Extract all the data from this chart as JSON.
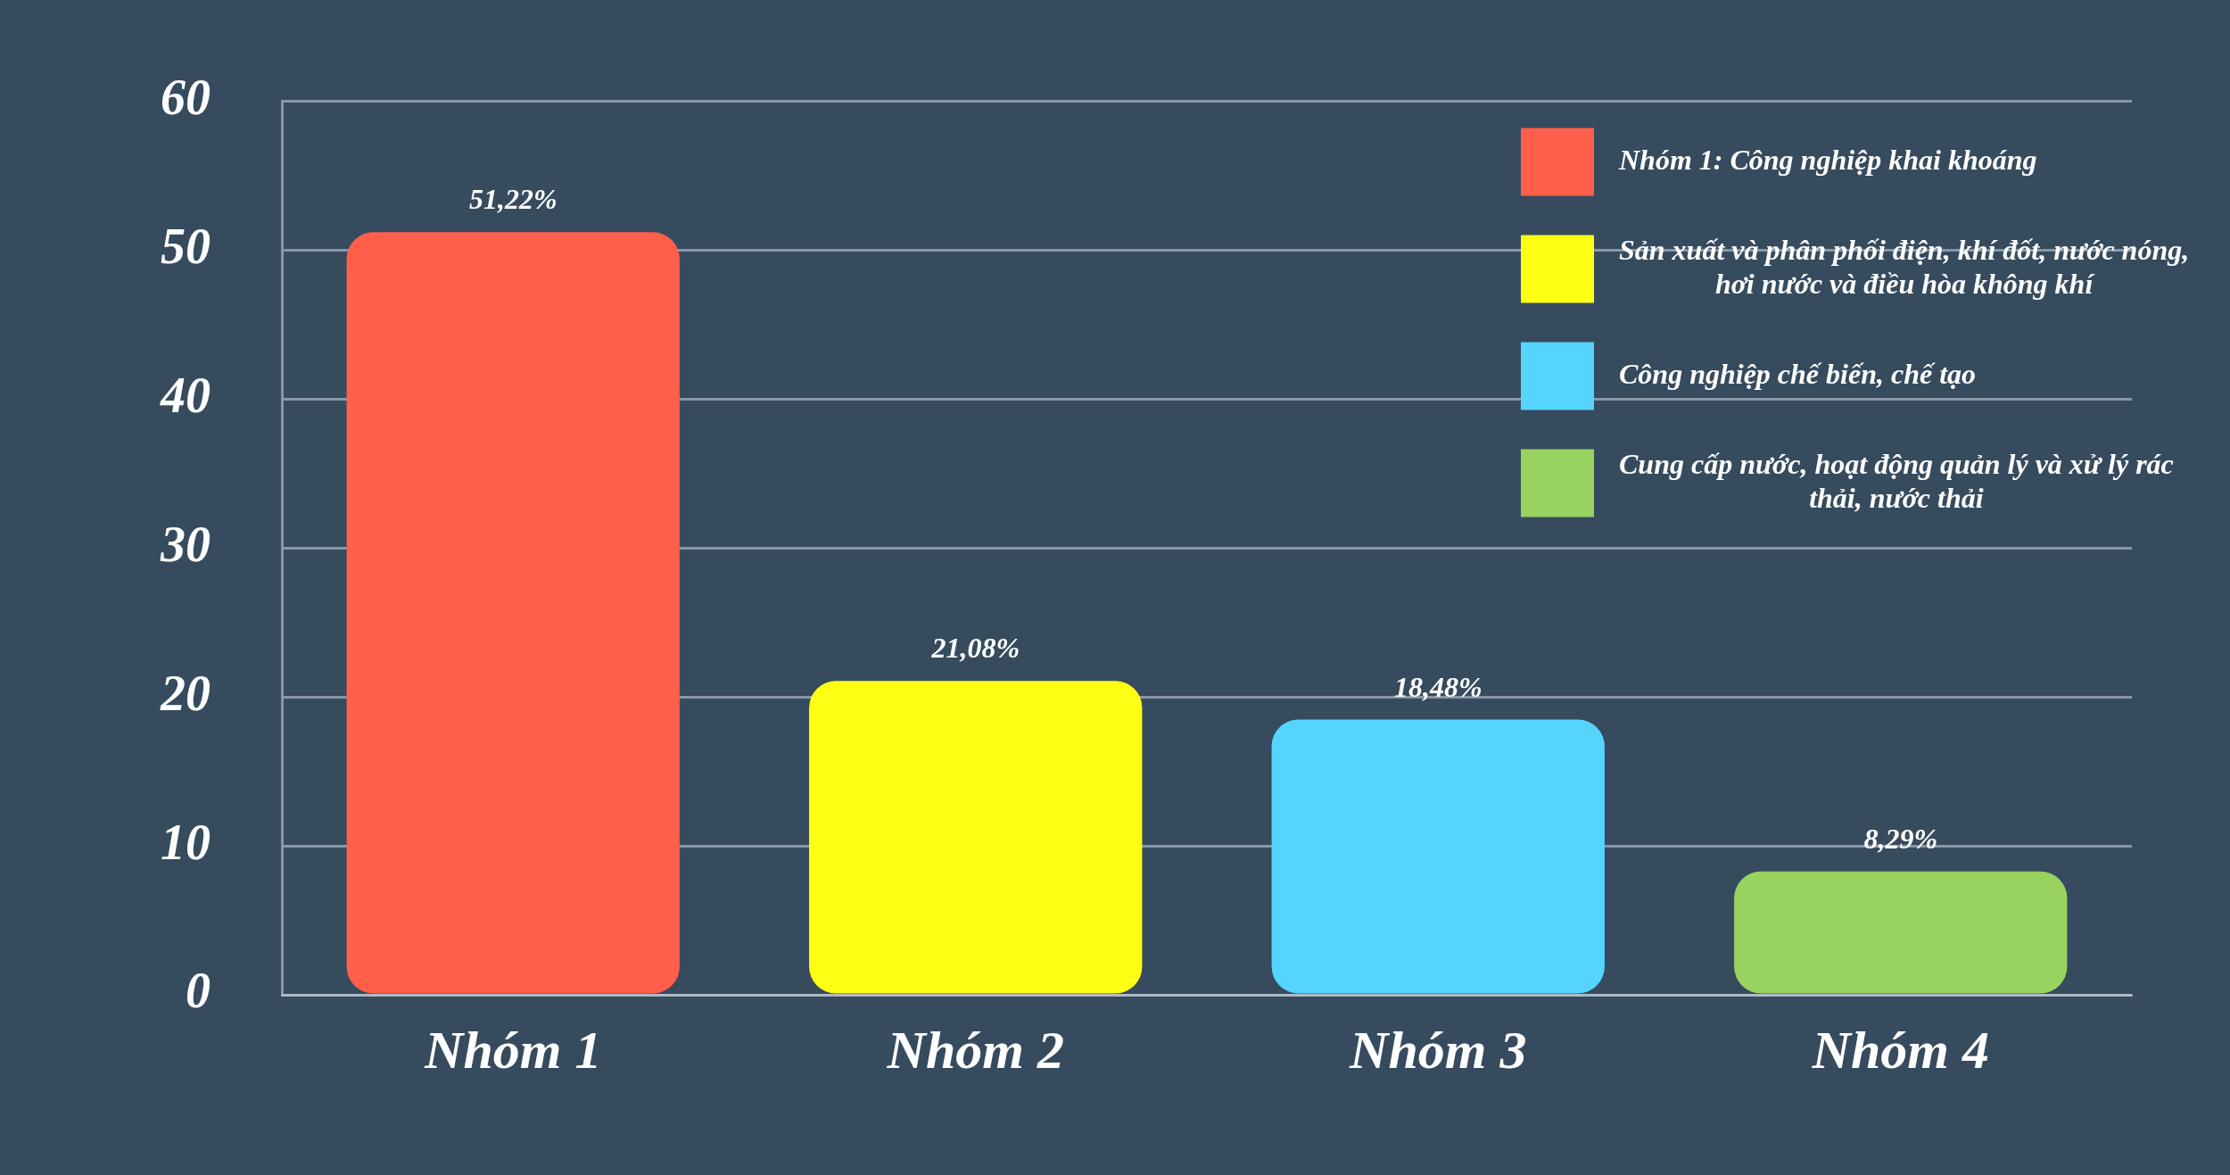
{
  "chart_data": {
    "type": "bar",
    "categories": [
      "Nhóm 1",
      "Nhóm 2",
      "Nhóm 3",
      "Nhóm 4"
    ],
    "series": [
      {
        "name": "Nhóm 1: Công nghiệp khai khoáng",
        "color": "#ff5f4b",
        "values": [
          51.22,
          null,
          null,
          null
        ],
        "value_labels": [
          "51,22%",
          null,
          null,
          null
        ]
      },
      {
        "name": "Sản xuất và phân phối điện, khí đốt, nước nóng, hơi nước và điều hòa không khí",
        "color": "#ffff14",
        "values": [
          null,
          21.08,
          null,
          null
        ],
        "value_labels": [
          null,
          "21,08%",
          null,
          null
        ]
      },
      {
        "name": "Công nghiệp chế biến, chế tạo",
        "color": "#55d4fd",
        "values": [
          null,
          null,
          18.48,
          null
        ],
        "value_labels": [
          null,
          null,
          "18,48%",
          null
        ]
      },
      {
        "name": "Cung cấp nước, hoạt động quản lý và xử lý rác thải, nước thải",
        "color": "#99d35f",
        "values": [
          null,
          null,
          null,
          8.29
        ],
        "value_labels": [
          null,
          null,
          null,
          "8,29%"
        ]
      }
    ],
    "ylim": [
      0,
      60
    ],
    "yticks": [
      0,
      10,
      20,
      30,
      40,
      50,
      60
    ],
    "grid": "y",
    "legend": "top right"
  }
}
